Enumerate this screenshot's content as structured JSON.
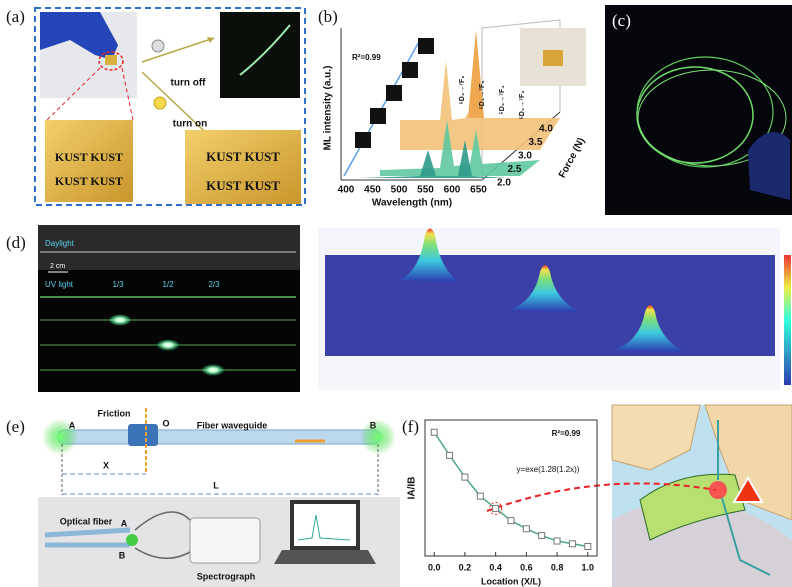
{
  "a": {
    "label": "(a)",
    "turn_off": "turn off",
    "turn_on": "turn on",
    "photo_before": [
      "KUST KUST",
      "KUST KUST"
    ],
    "photo_after": [
      "KUST KUST",
      "KUST KUST"
    ]
  },
  "b": {
    "label": "(b)",
    "r2": "R²=0.99",
    "ylabel": "ML intensity (a.u.)",
    "xlabel": "Wavelength (nm)",
    "xticks": [
      400,
      450,
      500,
      550,
      600,
      650
    ],
    "force_label": "Force (N)",
    "force_ticks": [
      "2.0",
      "2.5",
      "3.0",
      "3.5",
      "4.0"
    ],
    "transitions": [
      "⁵D₄→⁷F₆",
      "⁵D₄→⁷F₅",
      "⁵D₄→⁷F₄",
      "⁵D₄→⁷F₃"
    ]
  },
  "c": {
    "label": "(c)"
  },
  "d": {
    "label": "(d)",
    "daylight": "Daylight",
    "scale": "2 cm",
    "uv_light": "UV light",
    "positions": [
      "1/3",
      "1/2",
      "2/3"
    ]
  },
  "e": {
    "label": "(e)",
    "end_a": "A",
    "end_b": "B",
    "friction": "Friction",
    "origin": "O",
    "waveguide": "Fiber waveguide",
    "x": "X",
    "l": "L",
    "optical_fiber": "Optical fiber",
    "fiber_a": "A",
    "fiber_b": "B",
    "spectrograph": "Spectrograph"
  },
  "f": {
    "label": "(f)",
    "type": "scatter",
    "r2": "R²=0.99",
    "fit": "y=exe(1.28(1.2x))",
    "ylabel": "IA/IB",
    "xlabel": "Location (X/L)",
    "color": "#4aa88a",
    "x": [
      0.0,
      0.1,
      0.2,
      0.3,
      0.4,
      0.5,
      0.6,
      0.7,
      0.8,
      0.9,
      1.0
    ],
    "values": [
      0.91,
      0.74,
      0.58,
      0.44,
      0.35,
      0.26,
      0.2,
      0.15,
      0.11,
      0.09,
      0.07
    ],
    "xlim": [
      -0.06,
      1.06
    ],
    "ylim": [
      0,
      1
    ],
    "xticks": [
      {
        "value": 0,
        "label": "0.0"
      },
      {
        "value": 0.2,
        "label": "0.2"
      },
      {
        "value": 0.4,
        "label": "0.4"
      },
      {
        "value": 0.6,
        "label": "0.6"
      },
      {
        "value": 0.8,
        "label": "0.8"
      },
      {
        "value": 1,
        "label": "1.0"
      }
    ]
  }
}
